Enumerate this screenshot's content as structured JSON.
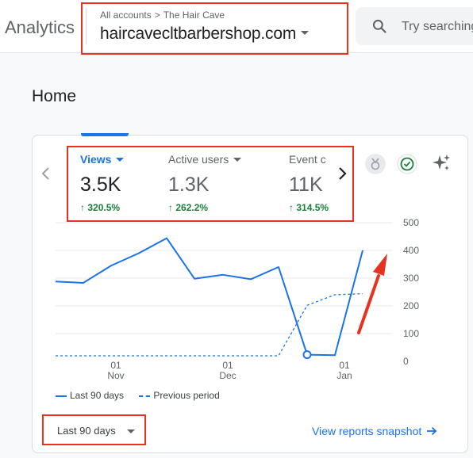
{
  "header": {
    "app_title": "Analytics",
    "breadcrumb_all": "All accounts",
    "breadcrumb_sep": ">",
    "breadcrumb_account": "The Hair Cave",
    "property_name": "haircavecltbarbershop.com",
    "search_placeholder": "Try searching"
  },
  "page_title": "Home",
  "metrics": [
    {
      "label": "Views",
      "value": "3.5K",
      "change": "320.5%",
      "active": true
    },
    {
      "label": "Active users",
      "value": "1.3K",
      "change": "262.2%",
      "active": false
    },
    {
      "label": "Event c",
      "value": "11K",
      "change": "314.5%",
      "active": false
    }
  ],
  "chart_data": {
    "type": "line",
    "y_ticks": [
      "500",
      "400",
      "300",
      "200",
      "100",
      "0"
    ],
    "ylim": [
      0,
      500
    ],
    "x_ticks": [
      {
        "day": "01",
        "month": "Nov"
      },
      {
        "day": "01",
        "month": "Dec"
      },
      {
        "day": "01",
        "month": "Jan"
      }
    ],
    "series": [
      {
        "name": "Last 90 days",
        "style": "solid",
        "color": "#1a73e8",
        "values": [
          288,
          283,
          345,
          390,
          444,
          298,
          312,
          296,
          340,
          24,
          22,
          400
        ]
      },
      {
        "name": "Previous period",
        "style": "dashed",
        "color": "#1a73e8",
        "values": [
          20,
          20,
          20,
          20,
          20,
          20,
          20,
          20,
          20,
          202,
          240,
          244
        ]
      }
    ],
    "grid": true,
    "legend_position": "bottom-left"
  },
  "date_range_label": "Last 90 days",
  "snapshot_link": "View reports snapshot",
  "colors": {
    "accent": "#1a73e8",
    "positive": "#188038",
    "annotation_red": "#e8321f"
  }
}
